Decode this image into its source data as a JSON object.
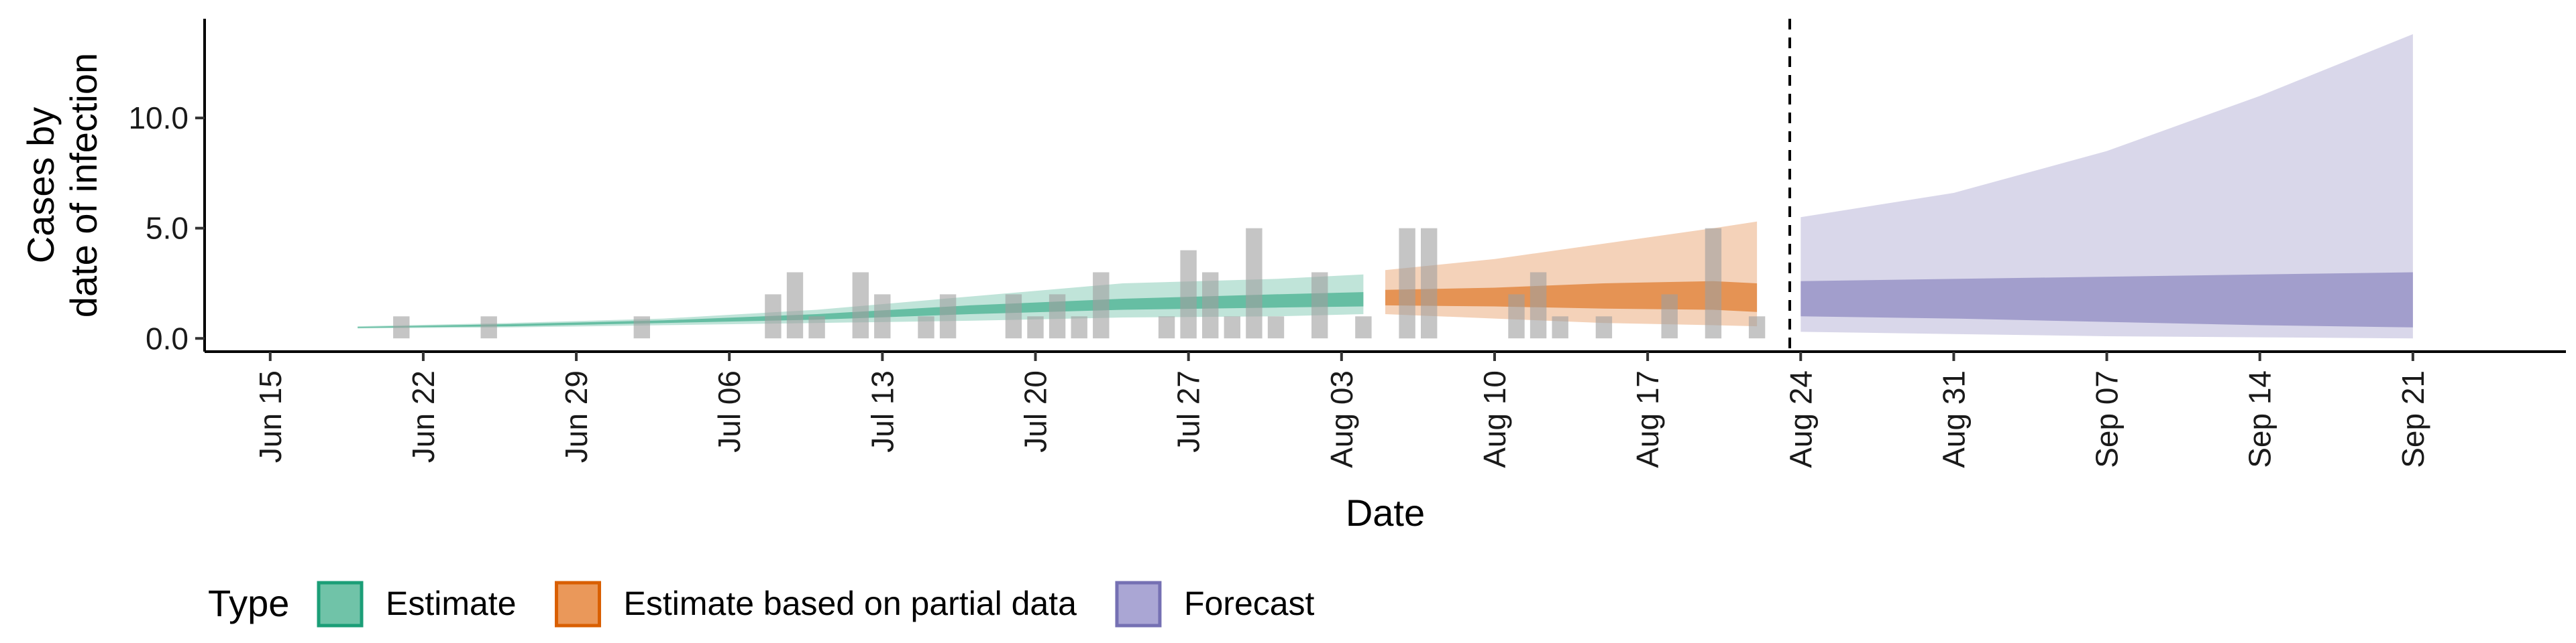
{
  "chart_data": {
    "type": "area",
    "xlabel": "Date",
    "ylabel_lines": [
      "Cases by",
      "date of infection"
    ],
    "x_range": [
      "2020-06-12",
      "2020-09-28"
    ],
    "ylim": [
      -0.6,
      14.5
    ],
    "y_ticks": [
      0,
      5,
      10
    ],
    "y_tick_labels": [
      "0.0",
      "5.0",
      "10.0"
    ],
    "x_ticks": [
      "2020-06-15",
      "2020-06-22",
      "2020-06-29",
      "2020-07-06",
      "2020-07-13",
      "2020-07-20",
      "2020-07-27",
      "2020-08-03",
      "2020-08-10",
      "2020-08-17",
      "2020-08-24",
      "2020-08-31",
      "2020-09-07",
      "2020-09-14",
      "2020-09-21"
    ],
    "x_tick_labels": [
      "Jun 15",
      "Jun 22",
      "Jun 29",
      "Jul 06",
      "Jul 13",
      "Jul 20",
      "Jul 27",
      "Aug 03",
      "Aug 10",
      "Aug 17",
      "Aug 24",
      "Aug 31",
      "Sep 07",
      "Sep 14",
      "Sep 21"
    ],
    "forecast_start": "2020-08-23",
    "legend": {
      "title": "Type",
      "position": "bottom-left",
      "entries": [
        {
          "label": "Estimate",
          "fill": "#70c3a8",
          "stroke": "#1b9e77"
        },
        {
          "label": "Estimate based on partial data",
          "fill": "#ea985a",
          "stroke": "#d95f02"
        },
        {
          "label": "Forecast",
          "fill": "#aaa6d4",
          "stroke": "#7570b3"
        }
      ]
    },
    "series": [
      {
        "name": "Estimate",
        "color": "#1b9e77",
        "points": [
          {
            "date": "2020-06-19",
            "lo90": 0.45,
            "hi90": 0.55,
            "lo50": 0.48,
            "hi50": 0.52
          },
          {
            "date": "2020-06-26",
            "lo90": 0.5,
            "hi90": 0.7,
            "lo50": 0.55,
            "hi50": 0.65
          },
          {
            "date": "2020-07-03",
            "lo90": 0.6,
            "hi90": 0.9,
            "lo50": 0.7,
            "hi50": 0.82
          },
          {
            "date": "2020-07-10",
            "lo90": 0.7,
            "hi90": 1.3,
            "lo50": 0.85,
            "hi50": 1.1
          },
          {
            "date": "2020-07-17",
            "lo90": 0.8,
            "hi90": 1.9,
            "lo50": 1.1,
            "hi50": 1.5
          },
          {
            "date": "2020-07-24",
            "lo90": 0.95,
            "hi90": 2.5,
            "lo50": 1.3,
            "hi50": 1.8
          },
          {
            "date": "2020-07-31",
            "lo90": 1.0,
            "hi90": 2.7,
            "lo50": 1.4,
            "hi50": 2.0
          },
          {
            "date": "2020-08-04",
            "lo90": 1.1,
            "hi90": 2.9,
            "lo50": 1.45,
            "hi50": 2.1
          }
        ]
      },
      {
        "name": "Estimate based on partial data",
        "color": "#d95f02",
        "points": [
          {
            "date": "2020-08-05",
            "lo90": 1.1,
            "hi90": 3.1,
            "lo50": 1.5,
            "hi50": 2.2
          },
          {
            "date": "2020-08-10",
            "lo90": 0.9,
            "hi90": 3.6,
            "lo50": 1.45,
            "hi50": 2.3
          },
          {
            "date": "2020-08-15",
            "lo90": 0.7,
            "hi90": 4.3,
            "lo50": 1.35,
            "hi50": 2.5
          },
          {
            "date": "2020-08-20",
            "lo90": 0.6,
            "hi90": 5.0,
            "lo50": 1.3,
            "hi50": 2.6
          },
          {
            "date": "2020-08-22",
            "lo90": 0.55,
            "hi90": 5.3,
            "lo50": 1.2,
            "hi50": 2.5
          }
        ]
      },
      {
        "name": "Forecast",
        "color": "#7570b3",
        "points": [
          {
            "date": "2020-08-24",
            "lo90": 0.3,
            "hi90": 5.5,
            "lo50": 1.0,
            "hi50": 2.6
          },
          {
            "date": "2020-08-31",
            "lo90": 0.2,
            "hi90": 6.6,
            "lo50": 0.9,
            "hi50": 2.7
          },
          {
            "date": "2020-09-07",
            "lo90": 0.1,
            "hi90": 8.5,
            "lo50": 0.75,
            "hi50": 2.8
          },
          {
            "date": "2020-09-14",
            "lo90": 0.05,
            "hi90": 11.0,
            "lo50": 0.6,
            "hi50": 2.9
          },
          {
            "date": "2020-09-21",
            "lo90": 0.0,
            "hi90": 13.8,
            "lo50": 0.5,
            "hi50": 3.0
          }
        ]
      }
    ],
    "observed_bars": [
      {
        "date": "2020-06-21",
        "value": 1
      },
      {
        "date": "2020-06-25",
        "value": 1
      },
      {
        "date": "2020-07-02",
        "value": 1
      },
      {
        "date": "2020-07-08",
        "value": 2
      },
      {
        "date": "2020-07-09",
        "value": 3
      },
      {
        "date": "2020-07-10",
        "value": 1
      },
      {
        "date": "2020-07-12",
        "value": 3
      },
      {
        "date": "2020-07-13",
        "value": 2
      },
      {
        "date": "2020-07-15",
        "value": 1
      },
      {
        "date": "2020-07-16",
        "value": 2
      },
      {
        "date": "2020-07-19",
        "value": 2
      },
      {
        "date": "2020-07-20",
        "value": 1
      },
      {
        "date": "2020-07-21",
        "value": 2
      },
      {
        "date": "2020-07-22",
        "value": 1
      },
      {
        "date": "2020-07-23",
        "value": 3
      },
      {
        "date": "2020-07-26",
        "value": 1
      },
      {
        "date": "2020-07-27",
        "value": 4
      },
      {
        "date": "2020-07-28",
        "value": 3
      },
      {
        "date": "2020-07-29",
        "value": 1
      },
      {
        "date": "2020-07-30",
        "value": 5
      },
      {
        "date": "2020-07-31",
        "value": 1
      },
      {
        "date": "2020-08-02",
        "value": 3
      },
      {
        "date": "2020-08-04",
        "value": 1
      },
      {
        "date": "2020-08-06",
        "value": 5
      },
      {
        "date": "2020-08-07",
        "value": 5
      },
      {
        "date": "2020-08-11",
        "value": 2
      },
      {
        "date": "2020-08-12",
        "value": 3
      },
      {
        "date": "2020-08-13",
        "value": 1
      },
      {
        "date": "2020-08-15",
        "value": 1
      },
      {
        "date": "2020-08-18",
        "value": 2
      },
      {
        "date": "2020-08-20",
        "value": 5
      },
      {
        "date": "2020-08-22",
        "value": 1
      }
    ]
  }
}
